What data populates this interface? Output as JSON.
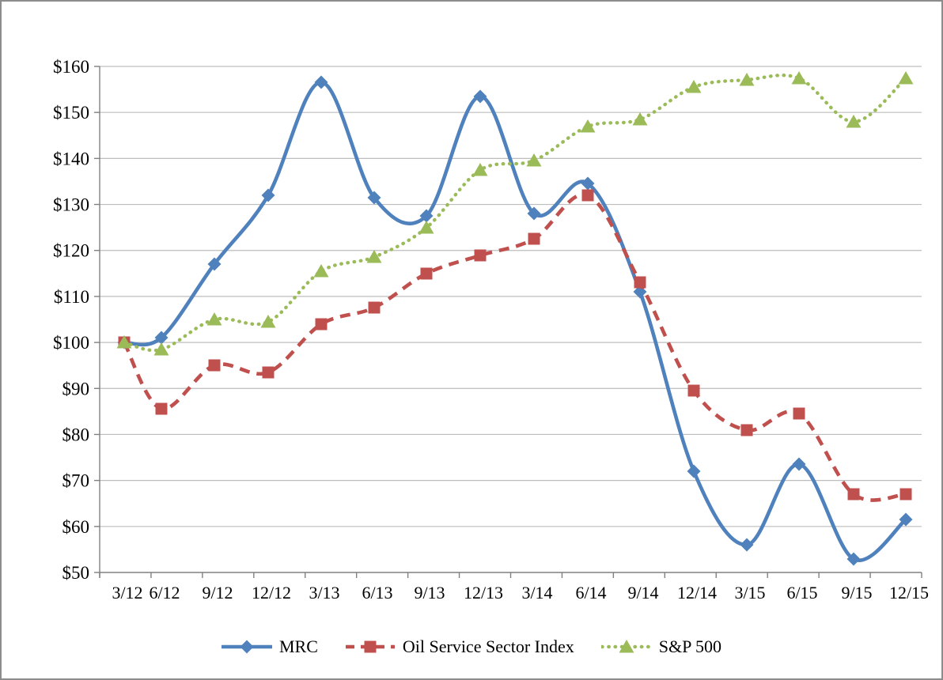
{
  "chart_data": {
    "type": "line",
    "smoothed": true,
    "grid": true,
    "categories": [
      "3/12",
      "6/12",
      "9/12",
      "12/12",
      "3/13",
      "6/13",
      "9/13",
      "12/13",
      "3/14",
      "6/14",
      "9/14",
      "12/14",
      "3/15",
      "6/15",
      "9/15",
      "12/15"
    ],
    "series": [
      {
        "name": "MRC",
        "color": "#4F81BD",
        "line_style": "solid",
        "marker": "diamond",
        "values": [
          100,
          101,
          117,
          132,
          156.5,
          131.5,
          127.5,
          153.5,
          128,
          134.5,
          111,
          72,
          56,
          73.5,
          53,
          61.5
        ]
      },
      {
        "name": "Oil Service Sector Index",
        "color": "#C0504D",
        "line_style": "dashed",
        "marker": "square",
        "values": [
          100,
          85.5,
          95,
          93.5,
          104,
          107.5,
          115,
          119,
          122.5,
          132,
          113,
          89.5,
          81,
          84.5,
          67,
          67
        ]
      },
      {
        "name": "S&P 500",
        "color": "#9BBB59",
        "line_style": "dotted",
        "marker": "triangle",
        "values": [
          100,
          98.5,
          105,
          104.5,
          115.5,
          118.5,
          125,
          137.5,
          139.5,
          147,
          148.5,
          155.5,
          157,
          157.5,
          148,
          157.5
        ]
      }
    ],
    "y_axis": {
      "min": 50,
      "max": 160,
      "step": 10,
      "tick_prefix": "$",
      "tick_labels": [
        "$50",
        "$60",
        "$70",
        "$80",
        "$90",
        "$100",
        "$110",
        "$120",
        "$130",
        "$140",
        "$150",
        "$160"
      ]
    },
    "x_axis": {
      "tick_labels": [
        "3/12",
        "6/12",
        "9/12",
        "12/12",
        "3/13",
        "6/13",
        "9/13",
        "12/13",
        "3/14",
        "6/14",
        "9/14",
        "12/14",
        "3/15",
        "6/15",
        "9/15",
        "12/15"
      ]
    },
    "legend": {
      "position": "bottom"
    }
  },
  "colors": {
    "gridline": "#BDBDBD",
    "axis": "#808080",
    "text": "#000000",
    "page_border": "#8C8C8C",
    "background": "#FFFFFF"
  }
}
